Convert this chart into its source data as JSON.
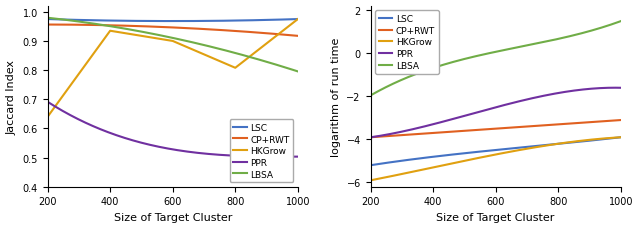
{
  "x": [
    200,
    400,
    600,
    800,
    1000
  ],
  "left_title": "",
  "left_xlabel": "Size of Target Cluster",
  "left_ylabel": "Jaccard Index",
  "left_ylim": [
    0.4,
    1.02
  ],
  "left_yticks": [
    0.4,
    0.5,
    0.6,
    0.7,
    0.8,
    0.9,
    1.0
  ],
  "LSC_jaccard": [
    0.975,
    0.97,
    0.968,
    0.97,
    0.975
  ],
  "CPRWT_jaccard": [
    0.955,
    0.955,
    0.95,
    0.928,
    0.92
  ],
  "HKGrow_jaccard": [
    0.64,
    0.935,
    0.9,
    0.808,
    0.975
  ],
  "PPR_jaccard": [
    0.69,
    0.59,
    0.52,
    0.512,
    0.502
  ],
  "LBSA_jaccard": [
    0.975,
    0.96,
    0.91,
    0.85,
    0.8
  ],
  "right_title": "",
  "right_xlabel": "Size of Target Cluster",
  "right_ylabel": "logarithm of run time",
  "right_ylim": [
    -6.2,
    2.2
  ],
  "right_yticks": [
    -6,
    -4,
    -2,
    0,
    2
  ],
  "LSC_runtime": [
    -5.2,
    -4.8,
    -4.5,
    -4.2,
    -3.9
  ],
  "CPRWT_runtime": [
    -3.9,
    -3.7,
    -3.5,
    -3.3,
    -3.1
  ],
  "HKGrow_runtime": [
    -5.9,
    -5.3,
    -4.7,
    -4.2,
    -3.9
  ],
  "PPR_runtime": [
    -3.9,
    -3.3,
    -2.5,
    -1.85,
    -1.6
  ],
  "LBSA_runtime": [
    -1.95,
    -0.7,
    0.1,
    0.65,
    1.5
  ],
  "colors": {
    "LSC": "#4472c4",
    "CPRWT": "#e06020",
    "HKGrow": "#e0a010",
    "PPR": "#7030a0",
    "LBSA": "#70ad47"
  },
  "legend_labels": [
    "LSC",
    "CP+RWT",
    "HKGrow",
    "PPR",
    "LBSA"
  ],
  "linewidth": 1.5
}
